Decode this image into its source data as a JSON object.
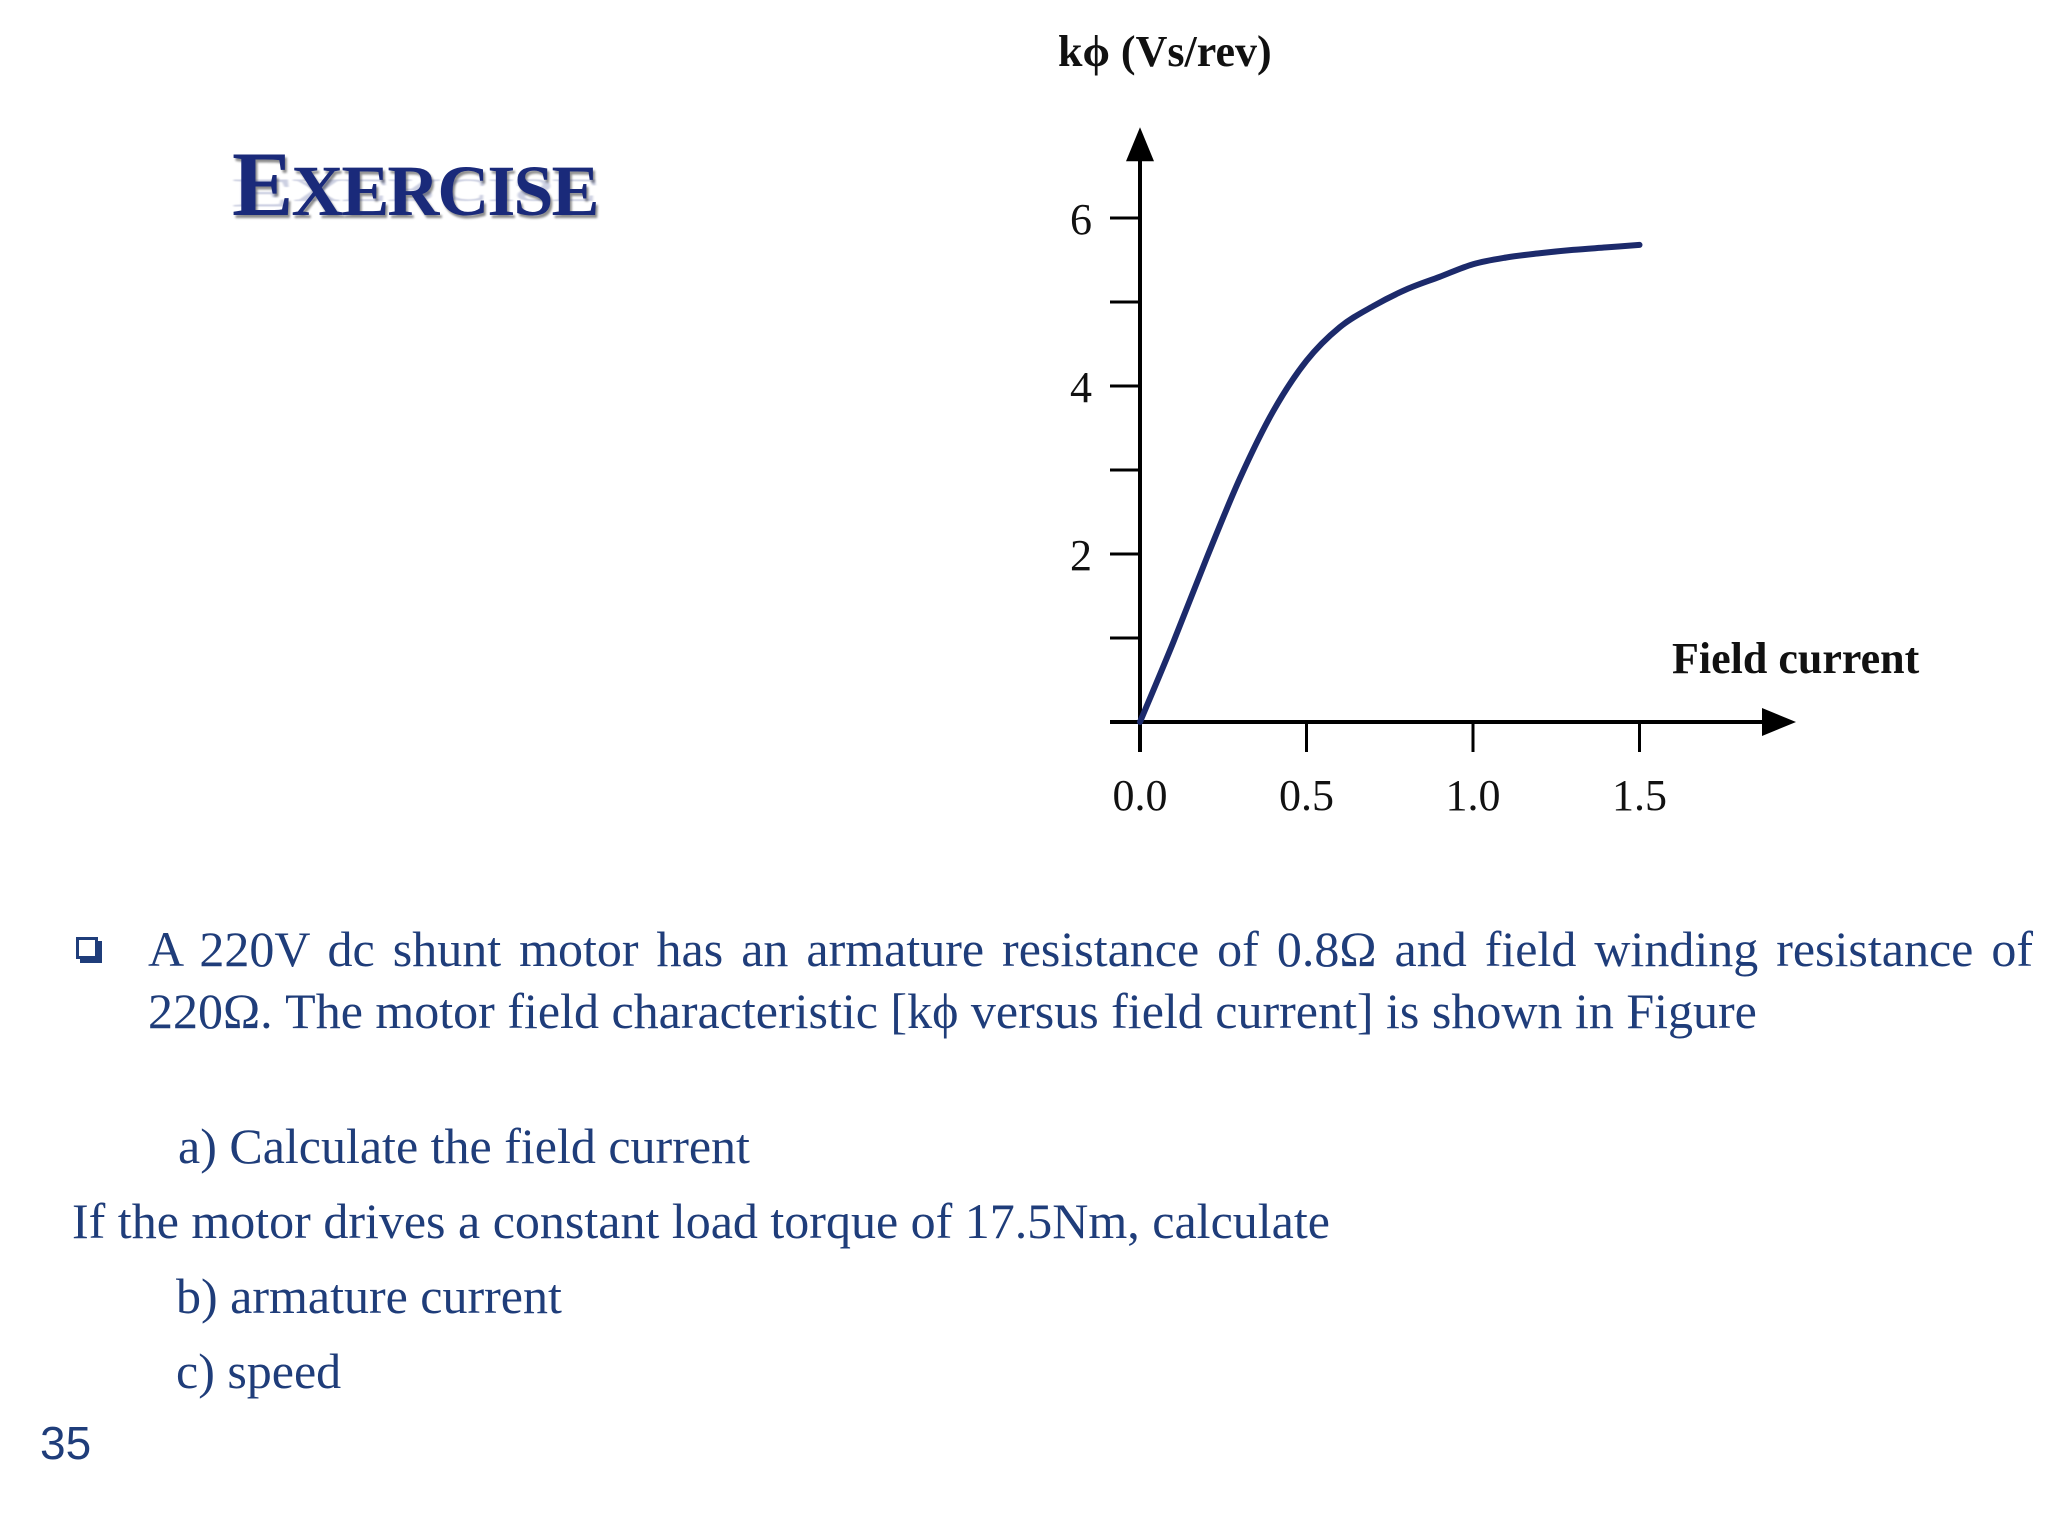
{
  "slide": {
    "title_first": "E",
    "title_rest": "XERCISE",
    "page_number": "35"
  },
  "chart_data": {
    "type": "line",
    "ylabel": "kϕ (Vs/rev)",
    "xlabel": "Field current",
    "xlim": [
      0,
      2.0
    ],
    "ylim": [
      0,
      7.2
    ],
    "x_ticks": [
      0.0,
      0.5,
      1.0,
      1.5
    ],
    "x_tick_labels": [
      "0.0",
      "0.5",
      "1.0",
      "1.5"
    ],
    "y_ticks": [
      1,
      2,
      3,
      4,
      5,
      6
    ],
    "y_tick_labels": [
      "",
      "2",
      "",
      "4",
      "",
      "6"
    ],
    "grid": false,
    "color": "#1c2a6b",
    "series": [
      {
        "x": [
          0.0,
          0.1,
          0.2,
          0.3,
          0.4,
          0.5,
          0.6,
          0.7,
          0.8,
          0.9,
          1.0,
          1.1,
          1.2,
          1.3,
          1.4,
          1.5
        ],
        "y": [
          0.0,
          0.95,
          1.95,
          2.9,
          3.7,
          4.3,
          4.7,
          4.95,
          5.15,
          5.3,
          5.45,
          5.53,
          5.58,
          5.62,
          5.65,
          5.68
        ]
      }
    ]
  },
  "problem": {
    "para1": "A 220V dc shunt motor has an armature resistance of 0.8Ω and field winding resistance of 220Ω. The motor field characteristic [kϕ versus field current] is shown in Figure",
    "item_a": "a) Calculate the field current",
    "line_torque": "If the motor drives a constant load torque of 17.5Nm, calculate",
    "item_b": "b) armature current",
    "item_c": "c) speed"
  }
}
